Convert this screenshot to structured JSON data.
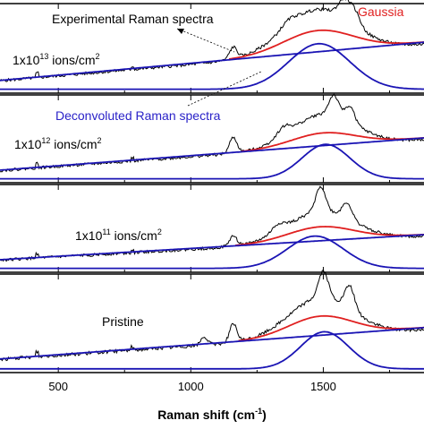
{
  "chart_data": {
    "type": "line",
    "xlabel_main": "Raman shift (cm",
    "xlabel_sup": "-1",
    "xlabel_close": ")",
    "xlim": [
      280,
      1880
    ],
    "x_ticks": [
      500,
      1000,
      1500
    ],
    "x_tick_labels": [
      "500",
      "1000",
      "1500"
    ],
    "colors": {
      "experimental": "#000000",
      "gaussian": "#e02020",
      "deconvoluted": "#1a14b4",
      "annotation_blue": "#2a22c8",
      "annotation_red": "#e02020"
    },
    "annotations": {
      "experimental": "Experimental Raman spectra",
      "gaussian": "Gaussia",
      "deconvoluted": "Deconvoluted Raman spectra"
    },
    "panels": [
      {
        "label_main": "1x10",
        "label_sup": "13",
        "label_tail": " ions/cm",
        "label_sup2": "2",
        "gaussian": {
          "center": 1480,
          "sigma": 130,
          "height": 0.78
        },
        "baseline": {
          "start": 0.1,
          "end": 0.62
        },
        "peak": {
          "center": 1485,
          "sigma": 115,
          "height": 0.62
        },
        "experimental_peaks": [
          {
            "x": 1160,
            "w": 14,
            "h": 0.16
          },
          {
            "x": 1580,
            "w": 22,
            "h": 0.25
          },
          {
            "x": 1620,
            "w": 20,
            "h": 0.18
          },
          {
            "x": 1370,
            "w": 30,
            "h": 0.08
          }
        ]
      },
      {
        "label_main": "1x10",
        "label_sup": "12",
        "label_tail": " ions/cm",
        "label_sup2": "2",
        "gaussian": {
          "center": 1500,
          "sigma": 120,
          "height": 0.62
        },
        "baseline": {
          "start": 0.1,
          "end": 0.55
        },
        "peak": {
          "center": 1510,
          "sigma": 90,
          "height": 0.48
        },
        "experimental_peaks": [
          {
            "x": 1160,
            "w": 14,
            "h": 0.22
          },
          {
            "x": 1540,
            "w": 18,
            "h": 0.28
          },
          {
            "x": 1600,
            "w": 18,
            "h": 0.22
          },
          {
            "x": 1350,
            "w": 25,
            "h": 0.12
          }
        ]
      },
      {
        "label_main": "1x10",
        "label_sup": "11",
        "label_tail": " ions/cm",
        "label_sup2": "2",
        "gaussian": {
          "center": 1490,
          "sigma": 125,
          "height": 0.56
        },
        "baseline": {
          "start": 0.1,
          "end": 0.45
        },
        "peak": {
          "center": 1470,
          "sigma": 105,
          "height": 0.45
        },
        "experimental_peaks": [
          {
            "x": 1160,
            "w": 14,
            "h": 0.14
          },
          {
            "x": 1490,
            "w": 18,
            "h": 0.35
          },
          {
            "x": 1590,
            "w": 18,
            "h": 0.22
          },
          {
            "x": 1330,
            "w": 25,
            "h": 0.1
          }
        ]
      },
      {
        "label_main": "Pristine",
        "label_sup": "",
        "label_tail": "",
        "label_sup2": "",
        "gaussian": {
          "center": 1490,
          "sigma": 120,
          "height": 0.62
        },
        "baseline": {
          "start": 0.1,
          "end": 0.48
        },
        "peak": {
          "center": 1505,
          "sigma": 90,
          "height": 0.45
        },
        "experimental_peaks": [
          {
            "x": 1160,
            "w": 14,
            "h": 0.22
          },
          {
            "x": 1500,
            "w": 18,
            "h": 0.32
          },
          {
            "x": 1600,
            "w": 18,
            "h": 0.28
          },
          {
            "x": 1050,
            "w": 12,
            "h": 0.1
          }
        ]
      }
    ]
  }
}
